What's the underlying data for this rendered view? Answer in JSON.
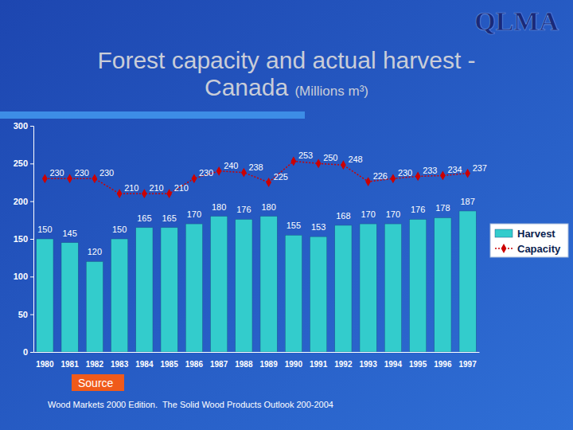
{
  "logo": "QLMA",
  "source": {
    "label": "Source",
    "text": "Wood Markets 2000 Edition.  The Solid Wood Products Outlook 200-2004"
  },
  "chart_data": {
    "type": "bar",
    "title": "Forest capacity and actual harvest - Canada",
    "subtitle": "(Millions m³)",
    "categories": [
      "1980",
      "1981",
      "1982",
      "1983",
      "1984",
      "1985",
      "1986",
      "1987",
      "1988",
      "1989",
      "1990",
      "1991",
      "1992",
      "1993",
      "1994",
      "1995",
      "1996",
      "1997"
    ],
    "series": [
      {
        "name": "Harvest",
        "type": "bar",
        "color": "#33cccc",
        "values": [
          150,
          145,
          120,
          150,
          165,
          165,
          170,
          180,
          176,
          180,
          155,
          153,
          168,
          170,
          170,
          176,
          178,
          187
        ]
      },
      {
        "name": "Capacity",
        "type": "line",
        "color": "#cc0000",
        "marker": "diamond",
        "line_style": "dotted",
        "values": [
          230,
          230,
          230,
          210,
          210,
          210,
          230,
          240,
          238,
          225,
          253,
          250,
          248,
          226,
          230,
          233,
          234,
          237
        ]
      }
    ],
    "ylim": [
      0,
      300
    ],
    "yticks": [
      0,
      50,
      100,
      150,
      200,
      250,
      300
    ],
    "grid": false,
    "legend": "right",
    "data_labels": true
  }
}
